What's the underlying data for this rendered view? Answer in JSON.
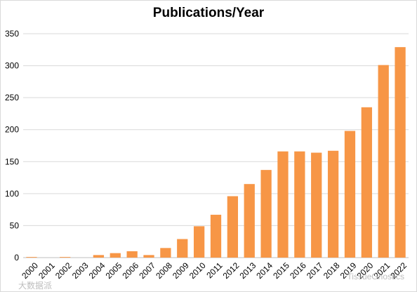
{
  "chart_data": {
    "type": "bar",
    "title": "Publications/Year",
    "xlabel": "",
    "ylabel": "",
    "ylim": [
      0,
      350
    ],
    "yticks": [
      0,
      50,
      100,
      150,
      200,
      250,
      300,
      350
    ],
    "grid": true,
    "legend": "none",
    "bar_color": "#f79646",
    "grid_color": "#d9d9d9",
    "categories": [
      "2000",
      "2001",
      "2002",
      "2003",
      "2004",
      "2005",
      "2006",
      "2007",
      "2008",
      "2009",
      "2010",
      "2011",
      "2012",
      "2013",
      "2014",
      "2015",
      "2016",
      "2017",
      "2018",
      "2019",
      "2020",
      "2021",
      "2022"
    ],
    "values": [
      1,
      0,
      1,
      0,
      4,
      7,
      10,
      4,
      15,
      29,
      49,
      67,
      96,
      115,
      137,
      166,
      166,
      164,
      167,
      198,
      235,
      301,
      329
    ]
  },
  "watermark": {
    "left_text": "大数据派",
    "right_text": "TissueGnostics"
  }
}
